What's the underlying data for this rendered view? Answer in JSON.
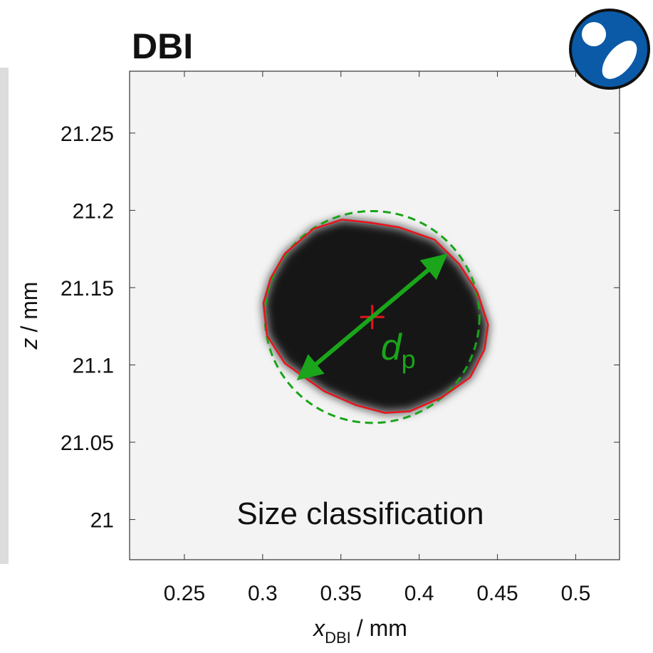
{
  "chart_data": {
    "type": "image",
    "title": "DBI",
    "x_label": {
      "symbol": "x",
      "subscript": "DBI",
      "unit": "/ mm"
    },
    "y_label": {
      "symbol": "z",
      "unit": "/ mm"
    },
    "annotation": "Size classification",
    "diameter_label": {
      "symbol": "d",
      "subscript": "p"
    },
    "xlim": [
      0.215,
      0.528
    ],
    "ylim": [
      20.974,
      21.29
    ],
    "xticks": [
      0.25,
      0.3,
      0.35,
      0.4,
      0.45,
      0.5
    ],
    "yticks": [
      21,
      21.05,
      21.1,
      21.15,
      21.2,
      21.25
    ],
    "contour": {
      "color": "#e8141b",
      "x": [
        0.3005,
        0.3051,
        0.3142,
        0.3324,
        0.3506,
        0.3689,
        0.3871,
        0.4098,
        0.4258,
        0.4372,
        0.444,
        0.4417,
        0.4326,
        0.4144,
        0.3939,
        0.378,
        0.3597,
        0.3393,
        0.3142,
        0.3028
      ],
      "y": [
        21.14,
        21.156,
        21.172,
        21.188,
        21.194,
        21.192,
        21.189,
        21.181,
        21.165,
        21.147,
        21.126,
        21.11,
        21.092,
        21.079,
        21.07,
        21.069,
        21.074,
        21.083,
        21.101,
        21.119
      ]
    },
    "center": {
      "x": 0.37,
      "y": 21.131,
      "color": "#e8141b"
    },
    "fitted_diameter": 0.137,
    "circle_color": "#1aa51a"
  }
}
